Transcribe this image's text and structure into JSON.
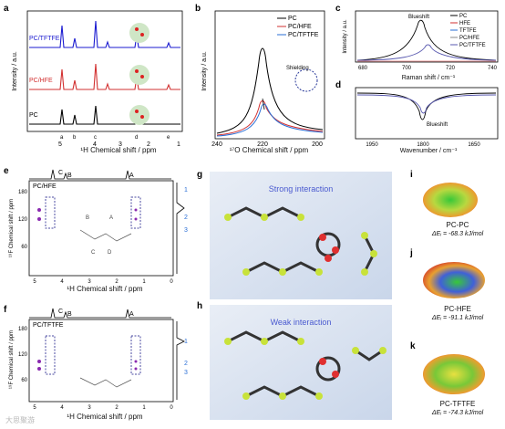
{
  "panels": {
    "a": {
      "letter": "a",
      "ylabel": "Intensity / a.u.",
      "xlabel": "¹H Chemical shift / ppm",
      "xticks": [
        "5",
        "4",
        "3",
        "2",
        "1"
      ],
      "series": [
        {
          "name": "PC/TFTFE",
          "color": "#1a1ad0"
        },
        {
          "name": "PC/HFE",
          "color": "#d23030"
        },
        {
          "name": "PC",
          "color": "#000000"
        }
      ],
      "peak_marks": [
        "a",
        "b",
        "c",
        "d",
        "e"
      ]
    },
    "b": {
      "letter": "b",
      "ylabel": "Intensity / a.u.",
      "xlabel": "¹⁷O Chemical shift / ppm",
      "xticks": [
        "240",
        "220",
        "200"
      ],
      "annotation": "Shielding",
      "legend": [
        {
          "name": "PC",
          "color": "#000000"
        },
        {
          "name": "PC/HFE",
          "color": "#d23030"
        },
        {
          "name": "PC/TFTFE",
          "color": "#2a6fd6"
        }
      ]
    },
    "c": {
      "letter": "c",
      "ylabel": "Intensity / a.u.",
      "xlabel": "Raman shift / cm⁻¹",
      "xticks": [
        "680",
        "700",
        "720",
        "740"
      ],
      "annotation": "Blueshift",
      "legend": [
        {
          "name": "PC",
          "color": "#000000"
        },
        {
          "name": "HFE",
          "color": "#d23030"
        },
        {
          "name": "TFTFE",
          "color": "#2a6fd6"
        },
        {
          "name": "PC/HFE",
          "color": "#888888"
        },
        {
          "name": "PC/TFTFE",
          "color": "#5a5ab0"
        }
      ]
    },
    "d": {
      "letter": "d",
      "xlabel": "Wavenumber / cm⁻¹",
      "xticks": [
        "1950",
        "1800",
        "1650"
      ],
      "annotation": "Blueshift"
    },
    "e": {
      "letter": "e",
      "inner_label": "PC/HFE",
      "ylabel": "¹⁹F Chemical shift / ppm",
      "xlabel": "¹H Chemical shift / ppm",
      "xticks": [
        "5",
        "4",
        "3",
        "2",
        "1",
        "0"
      ],
      "yticks": [
        "180",
        "120",
        "60"
      ],
      "top_marks": [
        "C",
        "B",
        "A"
      ],
      "right_marks": [
        "1",
        "2",
        "3"
      ],
      "mol_marks": [
        "B",
        "A",
        "C",
        "D"
      ]
    },
    "f": {
      "letter": "f",
      "inner_label": "PC/TFTFE",
      "ylabel": "¹⁹F Chemical shift / ppm",
      "xlabel": "¹H Chemical shift / ppm",
      "xticks": [
        "5",
        "4",
        "3",
        "2",
        "1",
        "0"
      ],
      "yticks": [
        "180",
        "120",
        "60"
      ],
      "top_marks": [
        "C",
        "B",
        "A"
      ],
      "right_marks": [
        "1",
        "2",
        "3"
      ]
    },
    "g": {
      "letter": "g",
      "title": "Strong interaction"
    },
    "h": {
      "letter": "h",
      "title": "Weak interaction"
    },
    "i": {
      "letter": "i",
      "name": "PC-PC",
      "energy": "ΔEᵢ = -68.3 kJ/mol"
    },
    "j": {
      "letter": "j",
      "name": "PC-HFE",
      "energy": "ΔEᵢ = -91.1 kJ/mol"
    },
    "k": {
      "letter": "k",
      "name": "PC-TFTFE",
      "energy": "ΔEᵢ = -74.3 kJ/mol"
    }
  },
  "watermark": "大思聚游"
}
